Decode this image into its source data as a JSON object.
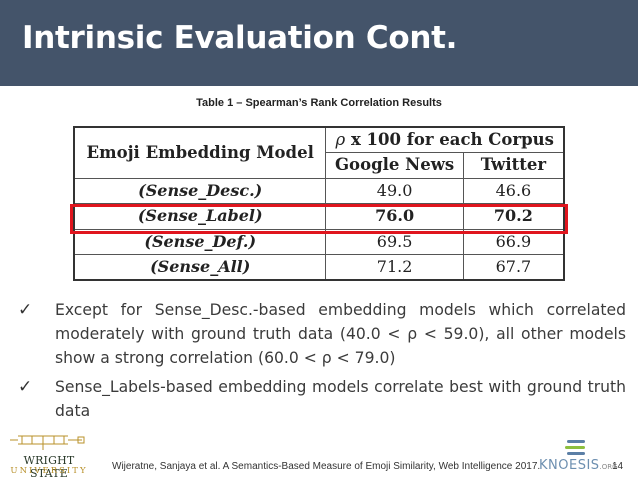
{
  "slide": {
    "title": "Intrinsic Evaluation Cont.",
    "caption": "Table 1 – Spearman’s Rank Correlation Results",
    "page_number": "14",
    "citation": "Wijeratne, Sanjaya et al. A Semantics-Based Measure of Emoji Similarity, Web Intelligence 2017."
  },
  "table": {
    "header_model": "Emoji Embedding Model",
    "header_rho_symbol": "ρ",
    "header_group_rest": "x 100 for each Corpus",
    "col_google": "Google News",
    "col_twitter": "Twitter",
    "rows": [
      {
        "model": "(Sense_Desc.)",
        "google": "49.0",
        "twitter": "46.6",
        "highlighted": false
      },
      {
        "model": "(Sense_Label)",
        "google": "76.0",
        "twitter": "70.2",
        "highlighted": true
      },
      {
        "model": "(Sense_Def.)",
        "google": "69.5",
        "twitter": "66.9",
        "highlighted": false
      },
      {
        "model": "(Sense_All)",
        "google": "71.2",
        "twitter": "67.7",
        "highlighted": false
      }
    ]
  },
  "bullets": [
    {
      "check": "✓",
      "text": "Except for Sense_Desc.-based embedding models which correlated moderately with ground truth data (40.0 < ρ < 59.0), all other models show a strong correlation (60.0 < ρ < 79.0)"
    },
    {
      "check": "✓",
      "text": "Sense_Labels-based embedding models correlate best with ground truth data"
    }
  ],
  "logos": {
    "left": {
      "line1": "WRIGHT STATE",
      "line2": "UNIVERSITY"
    },
    "right": {
      "word": "KNOESIS",
      "suffix": ".ORG"
    }
  },
  "colors": {
    "title_bar": "#44546a",
    "highlight_border": "#e0151e"
  }
}
